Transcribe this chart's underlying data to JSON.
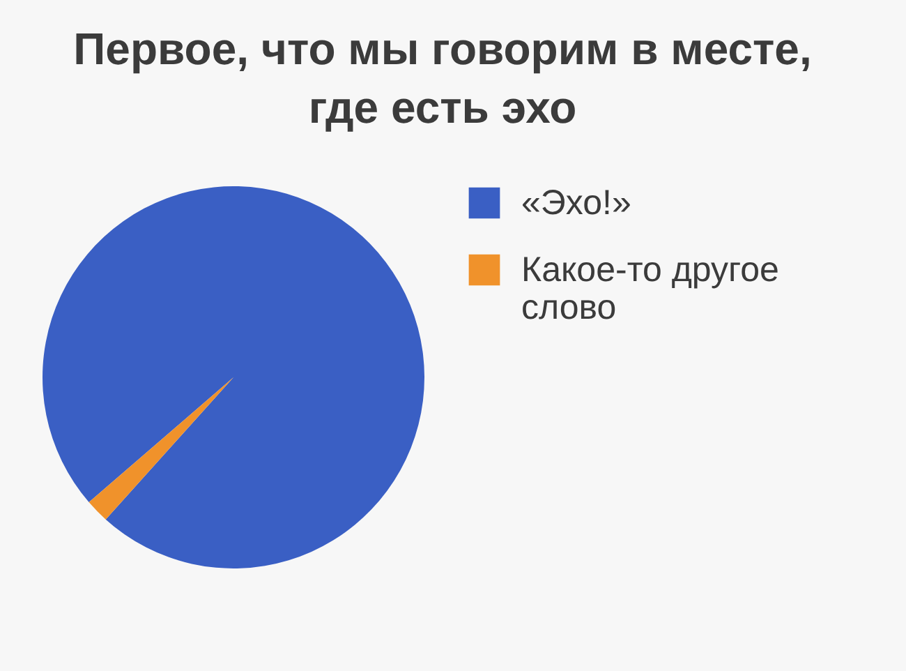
{
  "chart_data": {
    "type": "pie",
    "title": "Первое, что мы говорим в месте, где есть эхо",
    "categories": [
      "«Эхо!»",
      "Какое-то другое слово"
    ],
    "values": [
      98,
      2
    ],
    "colors": [
      "#3a5fc4",
      "#f0922b"
    ],
    "legend": "right"
  }
}
